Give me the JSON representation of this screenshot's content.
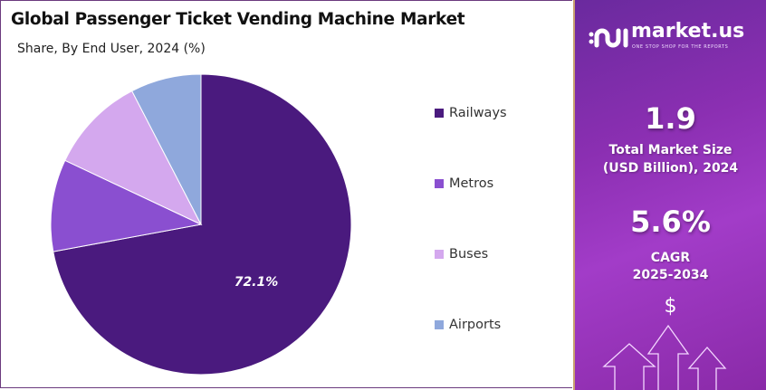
{
  "title": "Global Passenger Ticket Vending Machine Market",
  "subtitle": "Share, By End User, 2024 (%)",
  "chart_data": {
    "type": "pie",
    "title": "Global Passenger Ticket Vending Machine Market",
    "subtitle": "Share, By End User, 2024 (%)",
    "categories": [
      "Railways",
      "Metros",
      "Buses",
      "Airports"
    ],
    "values": [
      72.1,
      9.9,
      10.4,
      7.6
    ],
    "data_labels": [
      "72.1%",
      "",
      "",
      ""
    ],
    "colors": [
      "#4a1a7e",
      "#8a4fd0",
      "#d4a8ee",
      "#8fa8dc"
    ],
    "start_angle": "top, clockwise",
    "legend_position": "right"
  },
  "panel": {
    "brand": "market.us",
    "tagline": "ONE STOP SHOP FOR THE REPORTS",
    "market_size": "1.9",
    "market_size_label_1": "Total Market Size",
    "market_size_label_2": "(USD Billion), 2024",
    "cagr": "5.6%",
    "cagr_label_1": "CAGR",
    "cagr_label_2": "2025-2034",
    "dollar": "$"
  }
}
